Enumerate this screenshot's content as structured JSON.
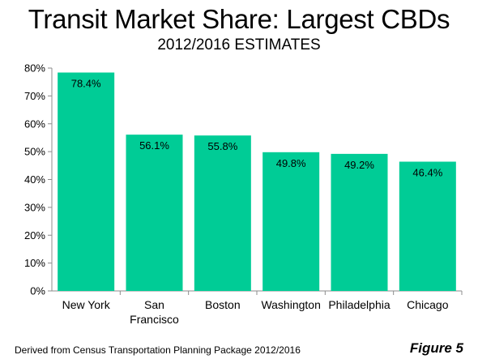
{
  "chart_data": {
    "type": "bar",
    "title": "Transit Market Share: Largest CBDs",
    "subtitle": "2012/2016 ESTIMATES",
    "categories": [
      "New York",
      "San Francisco",
      "Boston",
      "Washington",
      "Philadelphia",
      "Chicago"
    ],
    "category_lines": [
      [
        "New York"
      ],
      [
        "San",
        "Francisco"
      ],
      [
        "Boston"
      ],
      [
        "Washington"
      ],
      [
        "Philadelphia"
      ],
      [
        "Chicago"
      ]
    ],
    "values": [
      78.4,
      56.1,
      55.8,
      49.8,
      49.2,
      46.4
    ],
    "data_labels": [
      "78.4%",
      "56.1%",
      "55.8%",
      "49.8%",
      "49.2%",
      "46.4%"
    ],
    "ylim": [
      0,
      80
    ],
    "yticks": [
      0,
      10,
      20,
      30,
      40,
      50,
      60,
      70,
      80
    ],
    "ytick_labels": [
      "0%",
      "10%",
      "20%",
      "30%",
      "40%",
      "50%",
      "60%",
      "70%",
      "80%"
    ],
    "xlabel": "",
    "ylabel": "",
    "grid": false,
    "legend": "none",
    "bar_color": "#00CC96"
  },
  "footer": {
    "source": "Derived from Census Transportation Planning Package 2012/2016",
    "figure": "Figure 5"
  }
}
